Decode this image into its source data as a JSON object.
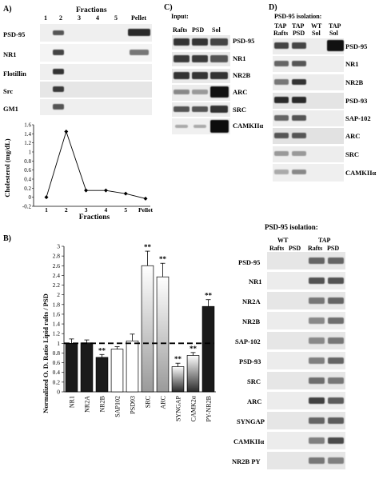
{
  "panel_a": {
    "label": "A)",
    "fractions_title": "Fractions",
    "fraction_numbers": [
      "1",
      "2",
      "3",
      "4",
      "5"
    ],
    "pellet": "Pellet",
    "blots": [
      "PSD-95",
      "NR1",
      "Flotillin",
      "Src",
      "GM1"
    ],
    "chart_data": {
      "type": "line",
      "categories": [
        "1",
        "2",
        "3",
        "4",
        "5",
        "Pellet"
      ],
      "values": [
        0,
        1.45,
        0.15,
        0.15,
        0.08,
        -0.03
      ],
      "xlabel": "Fractions",
      "ylabel": "Cholesterol (mg/dL)",
      "ylim": [
        -0.2,
        1.6
      ],
      "yticks": [
        "1.6",
        "1.4",
        "1.2",
        "1",
        "0.8",
        "0.6",
        "0.4",
        "0.2",
        "0",
        "-0.2"
      ]
    }
  },
  "panel_c": {
    "label": "C)",
    "title": "Input:",
    "columns": [
      "Rafts",
      "PSD",
      "Sol"
    ],
    "blots": [
      "PSD-95",
      "NR1",
      "NR2B",
      "ARC",
      "SRC",
      "CAMKIIα"
    ]
  },
  "panel_d": {
    "label": "D)",
    "title": "PSD-95 isolation:",
    "col_top": [
      "TAP",
      "TAP",
      "WT",
      "TAP"
    ],
    "col_bottom": [
      "Rafts",
      "PSD",
      "Sol",
      "Sol"
    ],
    "blots": [
      "PSD-95",
      "NR1",
      "NR2B",
      "PSD-93",
      "SAP-102",
      "ARC",
      "SRC",
      "CAMKIIα"
    ]
  },
  "panel_b": {
    "label": "B)",
    "chart_data": {
      "type": "bar",
      "categories": [
        "NR1",
        "NR2A",
        "NR2B",
        "SAP102",
        "PSD93",
        "SRC",
        "ARC",
        "SYNGAP",
        "CAMK2α",
        "PY-NR2B"
      ],
      "values": [
        1.0,
        1.01,
        0.71,
        0.88,
        1.05,
        2.6,
        2.37,
        0.52,
        0.75,
        1.76
      ],
      "errors": [
        0.09,
        0.06,
        0.06,
        0.05,
        0.14,
        0.3,
        0.28,
        0.07,
        0.06,
        0.14
      ],
      "significance": [
        "",
        "",
        "**",
        "",
        "",
        "**",
        "**",
        "**",
        "**",
        "**"
      ],
      "ylabel": "Normalized O. D. Ratio Lipid rafts / PSD",
      "ylim": [
        0,
        3
      ],
      "yticks": [
        "0",
        "0.2",
        "0.4",
        "0.6",
        "0.8",
        "1",
        "1.2",
        "1.4",
        "1.6",
        "1.8",
        "2",
        "2.2",
        "2.4",
        "2.6",
        "2.8",
        "3"
      ],
      "reference_line": 1
    },
    "right": {
      "title": "PSD-95 isolation:",
      "group_wt": "WT",
      "group_tap": "TAP",
      "cols": [
        "Rafts",
        "PSD",
        "Rafts",
        "PSD"
      ],
      "blots": [
        "PSD-95",
        "NR1",
        "NR2A",
        "NR2B",
        "SAP-102",
        "PSD-93",
        "SRC",
        "ARC",
        "SYNGAP",
        "CAMKIIα",
        "NR2B PY"
      ]
    }
  }
}
